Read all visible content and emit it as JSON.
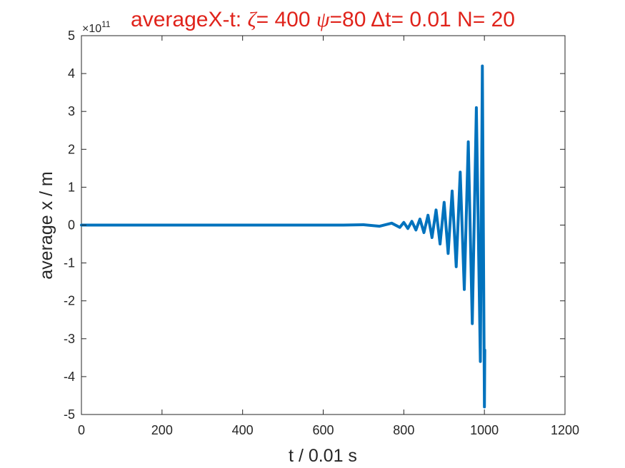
{
  "chart_data": {
    "type": "line",
    "title": {
      "prefix": "averageX-t:  ",
      "zeta_symbol": "ζ",
      "zeta_text": "= 400 ",
      "psi_symbol": "ψ",
      "psi_text": "=80 ",
      "delta_symbol": "Δ",
      "rest_text": "t= 0.01 N= 20"
    },
    "xlabel": "t / 0.01 s",
    "ylabel": "average x / m",
    "y_exponent": {
      "base": "×10",
      "power": "11"
    },
    "xlim": [
      0,
      1200
    ],
    "ylim": [
      -5,
      5
    ],
    "xticks": [
      0,
      200,
      400,
      600,
      800,
      1000,
      1200
    ],
    "yticks": [
      -5,
      -4,
      -3,
      -2,
      -1,
      0,
      1,
      2,
      3,
      4,
      5
    ],
    "xtick_labels": [
      "0",
      "200",
      "400",
      "600",
      "800",
      "1000",
      "1200"
    ],
    "ytick_labels": [
      "-5",
      "-4",
      "-3",
      "-2",
      "-1",
      "0",
      "1",
      "2",
      "3",
      "4",
      "5"
    ],
    "grid": false,
    "series": [
      {
        "color": "#0072bd",
        "x": [
          0,
          650,
          700,
          740,
          770,
          790,
          800,
          810,
          820,
          830,
          840,
          850,
          860,
          870,
          880,
          890,
          900,
          910,
          920,
          930,
          940,
          950,
          960,
          970,
          980,
          990,
          995,
          1000,
          1001
        ],
        "values": [
          0,
          0,
          0.01,
          -0.03,
          0.05,
          -0.06,
          0.07,
          -0.09,
          0.1,
          -0.13,
          0.16,
          -0.2,
          0.26,
          -0.33,
          0.4,
          -0.5,
          0.6,
          -0.75,
          0.9,
          -1.1,
          1.4,
          -1.7,
          2.2,
          -2.6,
          3.1,
          -3.6,
          4.2,
          -4.8,
          -3.3
        ]
      }
    ]
  }
}
